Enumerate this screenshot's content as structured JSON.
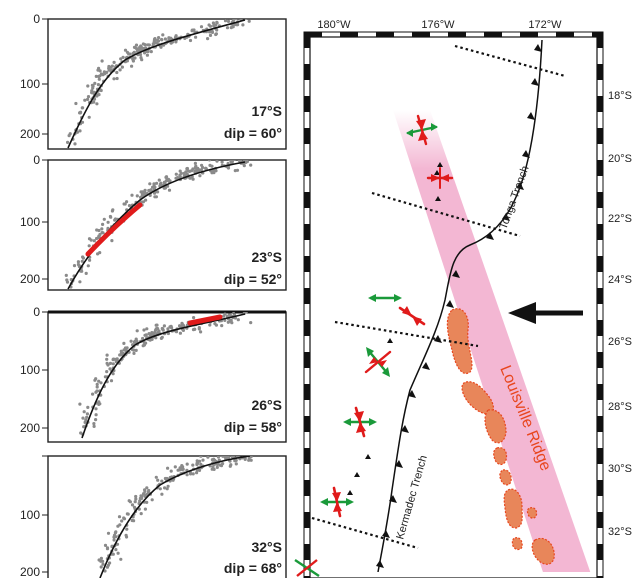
{
  "profiles": [
    {
      "lat": "17°S",
      "dip": "dip = 60°",
      "depth_ticks": [
        "0",
        "100",
        "200"
      ],
      "has_red_segment": false
    },
    {
      "lat": "23°S",
      "dip": "dip = 52°",
      "depth_ticks": [
        "0",
        "100",
        "200"
      ],
      "has_red_segment": true
    },
    {
      "lat": "26°S",
      "dip": "dip = 58°",
      "depth_ticks": [
        "0",
        "100",
        "200"
      ],
      "has_red_segment": true
    },
    {
      "lat": "32°S",
      "dip": "dip = 68°",
      "depth_ticks": [
        "100",
        "200"
      ],
      "has_red_segment": false
    }
  ],
  "map": {
    "lon_labels": [
      "180°W",
      "176°W",
      "172°W"
    ],
    "lat_labels": [
      "18°S",
      "20°S",
      "22°S",
      "24°S",
      "26°S",
      "28°S",
      "30°S",
      "32°S"
    ],
    "tonga_trench_label": "Tonga Trench",
    "kermadec_trench_label": "Kermadec Trench",
    "louisville_ridge_label": "Louisville Ridge",
    "colors": {
      "ridge_band": "#f3b7d3",
      "seamount_fill": "#e8865a",
      "seamount_outline": "#e8461e",
      "compression_arrow": "#e01b1b",
      "extension_arrow": "#1a9a3a",
      "trench": "#111111",
      "profile_line": "#111111"
    }
  }
}
